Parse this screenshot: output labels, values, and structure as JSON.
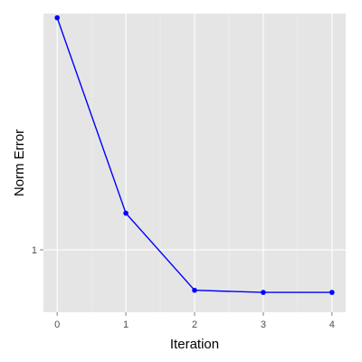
{
  "chart_data": {
    "type": "line",
    "title": "",
    "xlabel": "Iteration",
    "ylabel": "Norm Error",
    "x": [
      0,
      1,
      2,
      3,
      4
    ],
    "series": [
      {
        "values": [
          1.83,
          1.1,
          0.9,
          0.895,
          0.895
        ]
      }
    ],
    "x_ticks": [
      0,
      1,
      2,
      3,
      4
    ],
    "x_tick_labels": [
      "0",
      "1",
      "2",
      "3",
      "4"
    ],
    "y_ticks": [
      1
    ],
    "y_tick_labels": [
      "1"
    ],
    "xlim": [
      -0.2,
      4.2
    ],
    "ylim": [
      0.85,
      1.85
    ],
    "y_scale": "log",
    "grid": true,
    "legend": "none",
    "colors": {
      "line": "#0000ff",
      "panel_background": "#e5e5e5",
      "grid_major": "#ffffff",
      "grid_minor": "#f2f2f2",
      "tick_label": "#4d4d4d"
    }
  }
}
